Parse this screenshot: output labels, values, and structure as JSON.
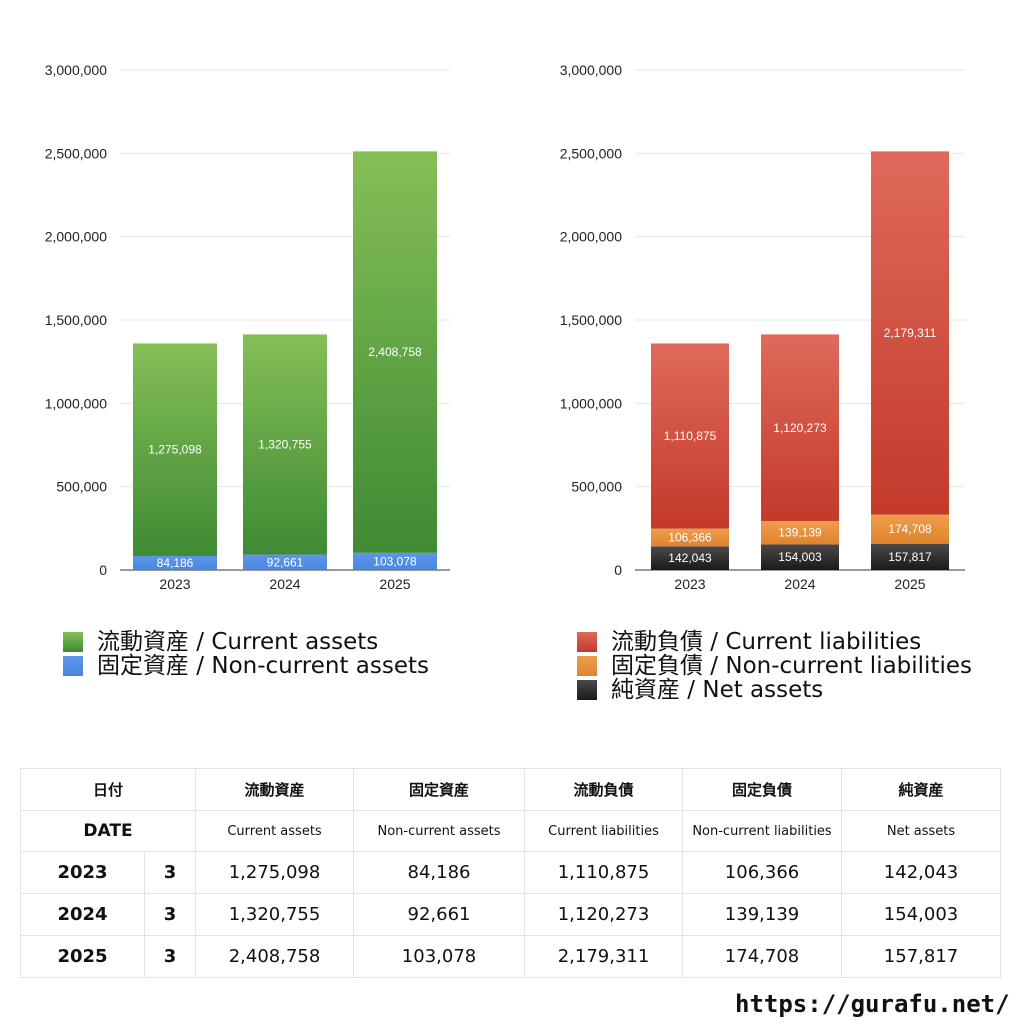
{
  "chart_data": [
    {
      "type": "bar",
      "stacked": true,
      "categories": [
        "2023",
        "2024",
        "2025"
      ],
      "ylim": [
        0,
        3000000
      ],
      "yticks": [
        "0",
        "500,000",
        "1,000,000",
        "1,500,000",
        "2,000,000",
        "2,500,000",
        "3,000,000"
      ],
      "series": [
        {
          "name": "固定資産 / Non-current assets",
          "values": [
            84186,
            92661,
            103078
          ],
          "labels": [
            "84,186",
            "92,661",
            "103,078"
          ],
          "color": "#4a86e0",
          "color_top": "#5d97ea",
          "label_color": "#ffffff"
        },
        {
          "name": "流動資産 / Current assets",
          "values": [
            1275098,
            1320755,
            2408758
          ],
          "labels": [
            "1,275,098",
            "1,320,755",
            "2,408,758"
          ],
          "color": "#3f8a34",
          "color_top": "#85bf56",
          "label_color": "#ffffff"
        }
      ],
      "legend_order": [
        1,
        0
      ],
      "grid": true,
      "legend": "bottom"
    },
    {
      "type": "bar",
      "stacked": true,
      "categories": [
        "2023",
        "2024",
        "2025"
      ],
      "ylim": [
        0,
        3000000
      ],
      "yticks": [
        "0",
        "500,000",
        "1,000,000",
        "1,500,000",
        "2,000,000",
        "2,500,000",
        "3,000,000"
      ],
      "series": [
        {
          "name": "純資産 / Net assets",
          "values": [
            142043,
            154003,
            157817
          ],
          "labels": [
            "142,043",
            "154,003",
            "157,817"
          ],
          "color": "#1a1a1a",
          "color_top": "#4a4a4a",
          "label_color": "#ffffff"
        },
        {
          "name": "固定負債 / Non-current liabilities",
          "values": [
            106366,
            139139,
            174708
          ],
          "labels": [
            "106,366",
            "139,139",
            "174,708"
          ],
          "color": "#e0832c",
          "color_top": "#ee9e4d",
          "label_color": "#ffffff"
        },
        {
          "name": "流動負債 / Current liabilities",
          "values": [
            1110875,
            1120273,
            2179311
          ],
          "labels": [
            "1,110,875",
            "1,120,273",
            "2,179,311"
          ],
          "color": "#c33a2a",
          "color_top": "#df6a5b",
          "label_color": "#ffffff"
        }
      ],
      "legend_order": [
        2,
        1,
        0
      ],
      "grid": true,
      "legend": "bottom"
    }
  ],
  "table": {
    "header_jp": [
      "日付",
      "流動資産",
      "固定資産",
      "流動負債",
      "固定負債",
      "純資産"
    ],
    "header_en": [
      "DATE",
      "Current assets",
      "Non-current assets",
      "Current liabilities",
      "Non-current liabilities",
      "Net assets"
    ],
    "rows": [
      {
        "year": "2023",
        "month": "3",
        "cells": [
          "1,275,098",
          "84,186",
          "1,110,875",
          "106,366",
          "142,043"
        ]
      },
      {
        "year": "2024",
        "month": "3",
        "cells": [
          "1,320,755",
          "92,661",
          "1,120,273",
          "139,139",
          "154,003"
        ]
      },
      {
        "year": "2025",
        "month": "3",
        "cells": [
          "2,408,758",
          "103,078",
          "2,179,311",
          "174,708",
          "157,817"
        ]
      }
    ]
  },
  "footer": {
    "url": "https://gurafu.net/"
  }
}
